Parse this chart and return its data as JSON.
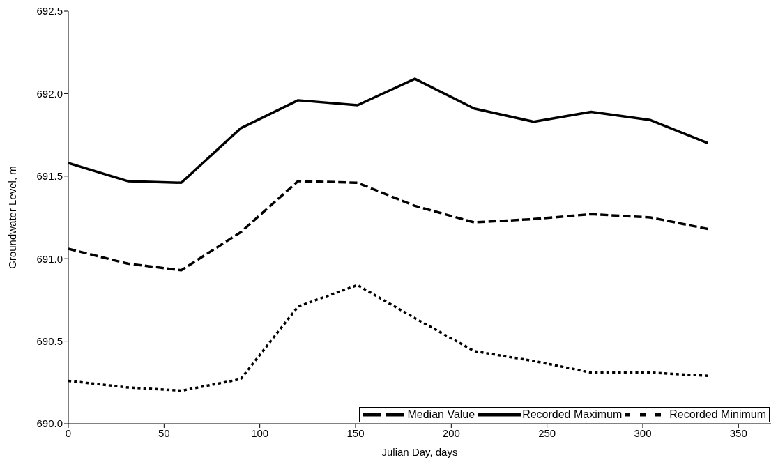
{
  "chart_data": {
    "type": "line",
    "xlabel": "Julian Day, days",
    "ylabel": "Groundwater Level, m",
    "x": [
      0,
      31,
      59,
      90,
      120,
      151,
      181,
      212,
      243,
      273,
      304,
      334
    ],
    "series": [
      {
        "name": "Median Value",
        "color": "#000000",
        "line_style": "dashed",
        "values": [
          691.06,
          690.97,
          690.93,
          691.16,
          691.47,
          691.46,
          691.32,
          691.22,
          691.24,
          691.27,
          691.25,
          691.18
        ]
      },
      {
        "name": "Recorded Maximum",
        "color": "#000000",
        "line_style": "solid",
        "values": [
          691.58,
          691.47,
          691.46,
          691.79,
          691.96,
          691.93,
          692.09,
          691.91,
          691.83,
          691.89,
          691.84,
          691.7
        ]
      },
      {
        "name": "Recorded Minimum",
        "color": "#000000",
        "line_style": "dotted",
        "values": [
          690.26,
          690.22,
          690.2,
          690.27,
          690.71,
          690.84,
          690.64,
          690.44,
          690.38,
          690.31,
          690.31,
          690.29
        ]
      }
    ],
    "xlim": [
      0,
      367
    ],
    "xticks": [
      0,
      50,
      100,
      150,
      200,
      250,
      300,
      350
    ],
    "ylim": [
      690,
      692.5
    ],
    "yticks": [
      {
        "value": 690,
        "label": "690.0"
      },
      {
        "value": 690.5,
        "label": "690.5"
      },
      {
        "value": 691,
        "label": "691.0"
      },
      {
        "value": 691.5,
        "label": "691.5"
      },
      {
        "value": 692,
        "label": "692.0"
      },
      {
        "value": 692.5,
        "label": "692.5"
      }
    ],
    "grid": false,
    "legend": "bottom right",
    "marker": "none"
  }
}
